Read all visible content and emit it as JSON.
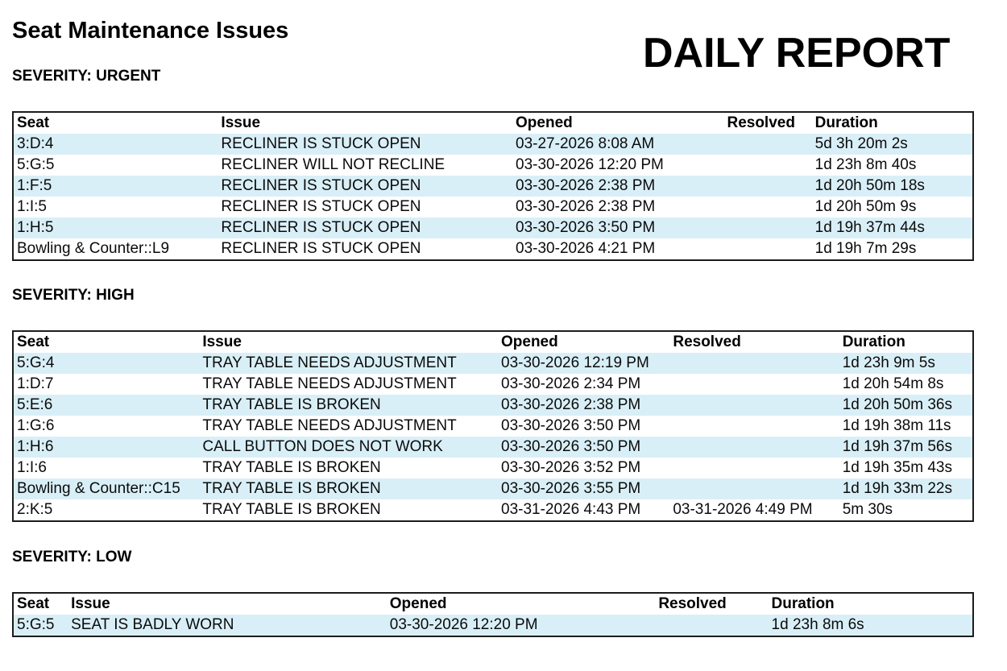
{
  "page": {
    "title": "Seat Maintenance Issues",
    "report_label": "DAILY REPORT"
  },
  "colors": {
    "row_stripe": "#d9eff7",
    "table_border": "#1c1c1c",
    "text": "#000000",
    "background": "#ffffff"
  },
  "sections": [
    {
      "heading": "SEVERITY: URGENT",
      "columns": [
        "Seat",
        "Issue",
        "Opened",
        "Resolved",
        "Duration"
      ],
      "rows": [
        [
          "3:D:4",
          "RECLINER IS STUCK OPEN",
          "03-27-2026 8:08 AM",
          "",
          "5d 3h 20m 2s"
        ],
        [
          "5:G:5",
          "RECLINER WILL NOT RECLINE",
          "03-30-2026 12:20 PM",
          "",
          "1d 23h 8m 40s"
        ],
        [
          "1:F:5",
          "RECLINER IS STUCK OPEN",
          "03-30-2026 2:38 PM",
          "",
          "1d 20h 50m 18s"
        ],
        [
          "1:I:5",
          "RECLINER IS STUCK OPEN",
          "03-30-2026 2:38 PM",
          "",
          "1d 20h 50m 9s"
        ],
        [
          "1:H:5",
          "RECLINER IS STUCK OPEN",
          "03-30-2026 3:50 PM",
          "",
          "1d 19h 37m 44s"
        ],
        [
          "Bowling & Counter::L9",
          "RECLINER IS STUCK OPEN",
          "03-30-2026 4:21 PM",
          "",
          "1d 19h 7m 29s"
        ]
      ]
    },
    {
      "heading": "SEVERITY: HIGH",
      "columns": [
        "Seat",
        "Issue",
        "Opened",
        "Resolved",
        "Duration"
      ],
      "rows": [
        [
          "5:G:4",
          "TRAY TABLE NEEDS ADJUSTMENT",
          "03-30-2026 12:19 PM",
          "",
          "1d 23h 9m 5s"
        ],
        [
          "1:D:7",
          "TRAY TABLE NEEDS ADJUSTMENT",
          "03-30-2026 2:34 PM",
          "",
          "1d 20h 54m 8s"
        ],
        [
          "5:E:6",
          "TRAY TABLE IS BROKEN",
          "03-30-2026 2:38 PM",
          "",
          "1d 20h 50m 36s"
        ],
        [
          "1:G:6",
          "TRAY TABLE NEEDS ADJUSTMENT",
          "03-30-2026 3:50 PM",
          "",
          "1d 19h 38m 11s"
        ],
        [
          "1:H:6",
          "CALL BUTTON DOES NOT WORK",
          "03-30-2026 3:50 PM",
          "",
          "1d 19h 37m 56s"
        ],
        [
          "1:I:6",
          "TRAY TABLE IS BROKEN",
          "03-30-2026 3:52 PM",
          "",
          "1d 19h 35m 43s"
        ],
        [
          "Bowling & Counter::C15",
          "TRAY TABLE IS BROKEN",
          "03-30-2026 3:55 PM",
          "",
          "1d 19h 33m 22s"
        ],
        [
          "2:K:5",
          "TRAY TABLE IS BROKEN",
          "03-31-2026 4:43 PM",
          "03-31-2026 4:49 PM",
          "5m 30s"
        ]
      ]
    },
    {
      "heading": "SEVERITY: LOW",
      "columns": [
        "Seat",
        "Issue",
        "Opened",
        "Resolved",
        "Duration"
      ],
      "rows": [
        [
          "5:G:5",
          "SEAT IS BADLY WORN",
          "03-30-2026 12:20 PM",
          "",
          "1d 23h 8m 6s"
        ]
      ]
    }
  ]
}
